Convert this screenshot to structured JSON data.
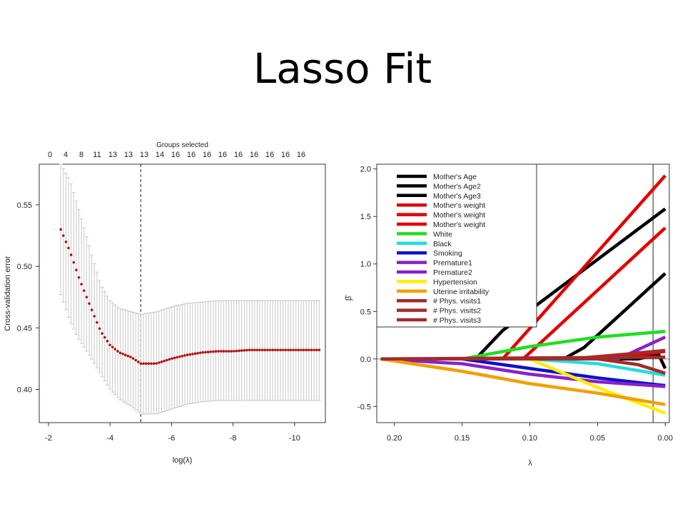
{
  "slide": {
    "title": "Lasso Fit"
  },
  "colors": {
    "cv_points": "#b01010",
    "error_bars": "#c8c8c8",
    "axis": "#333333"
  },
  "chart_data": [
    {
      "type": "scatter",
      "title": "",
      "xlabel": "log(λ)",
      "ylabel": "Cross-validation error",
      "top_axis_label": "Groups selected",
      "top_ticks": [
        "0",
        "4",
        "8",
        "11",
        "13",
        "13",
        "13",
        "14",
        "16",
        "16",
        "16",
        "16",
        "16",
        "16",
        "16",
        "16",
        "16"
      ],
      "x_ticks": [
        -2,
        -4,
        -6,
        -8,
        -10
      ],
      "y_ticks": [
        0.4,
        0.45,
        0.5,
        0.55
      ],
      "xlim": [
        -1.7,
        -11.0
      ],
      "ylim": [
        0.373,
        0.583
      ],
      "x_reversed": true,
      "selected_log_lambda": -5.0,
      "series": [
        {
          "x": [
            -2.4,
            -2.7,
            -3.0,
            -3.4,
            -3.7,
            -4.0,
            -4.3,
            -4.7,
            -5.0,
            -5.5,
            -6.0,
            -6.5,
            -7.0,
            -7.5,
            -8.0,
            -8.5,
            -9.0,
            -9.5,
            -10.0,
            -10.5,
            -10.8
          ],
          "y": [
            0.53,
            0.512,
            0.49,
            0.465,
            0.447,
            0.436,
            0.43,
            0.426,
            0.421,
            0.421,
            0.425,
            0.428,
            0.43,
            0.431,
            0.431,
            0.432,
            0.432,
            0.432,
            0.432,
            0.432,
            0.432
          ],
          "y_low": [
            0.477,
            0.455,
            0.44,
            0.425,
            0.412,
            0.4,
            0.392,
            0.386,
            0.38,
            0.38,
            0.384,
            0.388,
            0.39,
            0.391,
            0.391,
            0.391,
            0.391,
            0.391,
            0.391,
            0.391,
            0.391
          ],
          "y_high": [
            0.583,
            0.57,
            0.545,
            0.51,
            0.485,
            0.472,
            0.466,
            0.463,
            0.461,
            0.463,
            0.467,
            0.47,
            0.471,
            0.472,
            0.472,
            0.472,
            0.472,
            0.472,
            0.472,
            0.472,
            0.472
          ]
        }
      ]
    },
    {
      "type": "line",
      "title": "",
      "xlabel": "λ",
      "ylabel": "β̂",
      "x_ticks": [
        "0.20",
        "0.15",
        "0.10",
        "0.05",
        "0.00"
      ],
      "y_ticks": [
        "-0.5",
        "0.0",
        "0.5",
        "1.0",
        "1.5",
        "2.0"
      ],
      "xlim": [
        0.213,
        -0.003
      ],
      "ylim": [
        -0.67,
        2.05
      ],
      "x_reversed": true,
      "selected_lambda": 0.009,
      "legend_position": "top-left",
      "series": [
        {
          "name": "Mother's Age",
          "color": "#000000",
          "x": [
            0.21,
            0.14,
            0.12,
            0.0
          ],
          "y": [
            0.0,
            0.0,
            0.3,
            1.58
          ]
        },
        {
          "name": "Mother's Age2",
          "color": "#000000",
          "x": [
            0.21,
            0.075,
            0.06,
            0.0
          ],
          "y": [
            0.0,
            0.0,
            0.12,
            0.9
          ]
        },
        {
          "name": "Mother's Age3",
          "color": "#000000",
          "x": [
            0.21,
            0.02,
            0.005,
            0.0
          ],
          "y": [
            0.0,
            0.0,
            0.05,
            -0.1
          ]
        },
        {
          "name": "Mother's weight",
          "color": "#e00000",
          "x": [
            0.21,
            0.12,
            0.0
          ],
          "y": [
            0.0,
            0.0,
            1.93
          ]
        },
        {
          "name": "Mother's weight",
          "color": "#e00000",
          "x": [
            0.21,
            0.105,
            0.0
          ],
          "y": [
            0.0,
            0.0,
            1.38
          ]
        },
        {
          "name": "Mother's weight",
          "color": "#e00000",
          "x": [
            0.21,
            0.04,
            0.0
          ],
          "y": [
            0.0,
            0.0,
            0.08
          ]
        },
        {
          "name": "White",
          "color": "#22dd22",
          "x": [
            0.21,
            0.15,
            0.1,
            0.05,
            0.0
          ],
          "y": [
            0.0,
            0.0,
            0.13,
            0.23,
            0.29
          ]
        },
        {
          "name": "Black",
          "color": "#22dddd",
          "x": [
            0.21,
            0.1,
            0.05,
            0.0
          ],
          "y": [
            0.0,
            0.0,
            -0.05,
            -0.17
          ]
        },
        {
          "name": "Smoking",
          "color": "#1010cc",
          "x": [
            0.21,
            0.15,
            0.1,
            0.05,
            0.0
          ],
          "y": [
            0.0,
            0.0,
            -0.1,
            -0.2,
            -0.28
          ]
        },
        {
          "name": "Premature1",
          "color": "#8822cc",
          "x": [
            0.21,
            0.035,
            0.0
          ],
          "y": [
            0.0,
            0.0,
            0.23
          ]
        },
        {
          "name": "Premature2",
          "color": "#8822cc",
          "x": [
            0.21,
            0.15,
            0.1,
            0.05,
            0.0
          ],
          "y": [
            0.0,
            -0.05,
            -0.16,
            -0.24,
            -0.29
          ]
        },
        {
          "name": "Hypertension",
          "color": "#ffee00",
          "x": [
            0.21,
            0.1,
            0.05,
            0.0
          ],
          "y": [
            0.0,
            0.0,
            -0.3,
            -0.57
          ]
        },
        {
          "name": "Uterine irritability",
          "color": "#f0a000",
          "x": [
            0.21,
            0.15,
            0.1,
            0.05,
            0.0
          ],
          "y": [
            0.0,
            -0.13,
            -0.26,
            -0.36,
            -0.48
          ]
        },
        {
          "name": "# Phys. visits1",
          "color": "#a52a2a",
          "x": [
            0.21,
            0.07,
            0.03,
            0.0
          ],
          "y": [
            0.0,
            0.0,
            0.05,
            0.09
          ]
        },
        {
          "name": "# Phys. visits2",
          "color": "#a52a2a",
          "x": [
            0.21,
            0.05,
            0.02,
            0.0
          ],
          "y": [
            0.0,
            0.0,
            -0.06,
            -0.15
          ]
        },
        {
          "name": "# Phys. visits3",
          "color": "#a52a2a",
          "x": [
            0.21,
            0.0
          ],
          "y": [
            0.0,
            0.02
          ]
        }
      ]
    }
  ]
}
